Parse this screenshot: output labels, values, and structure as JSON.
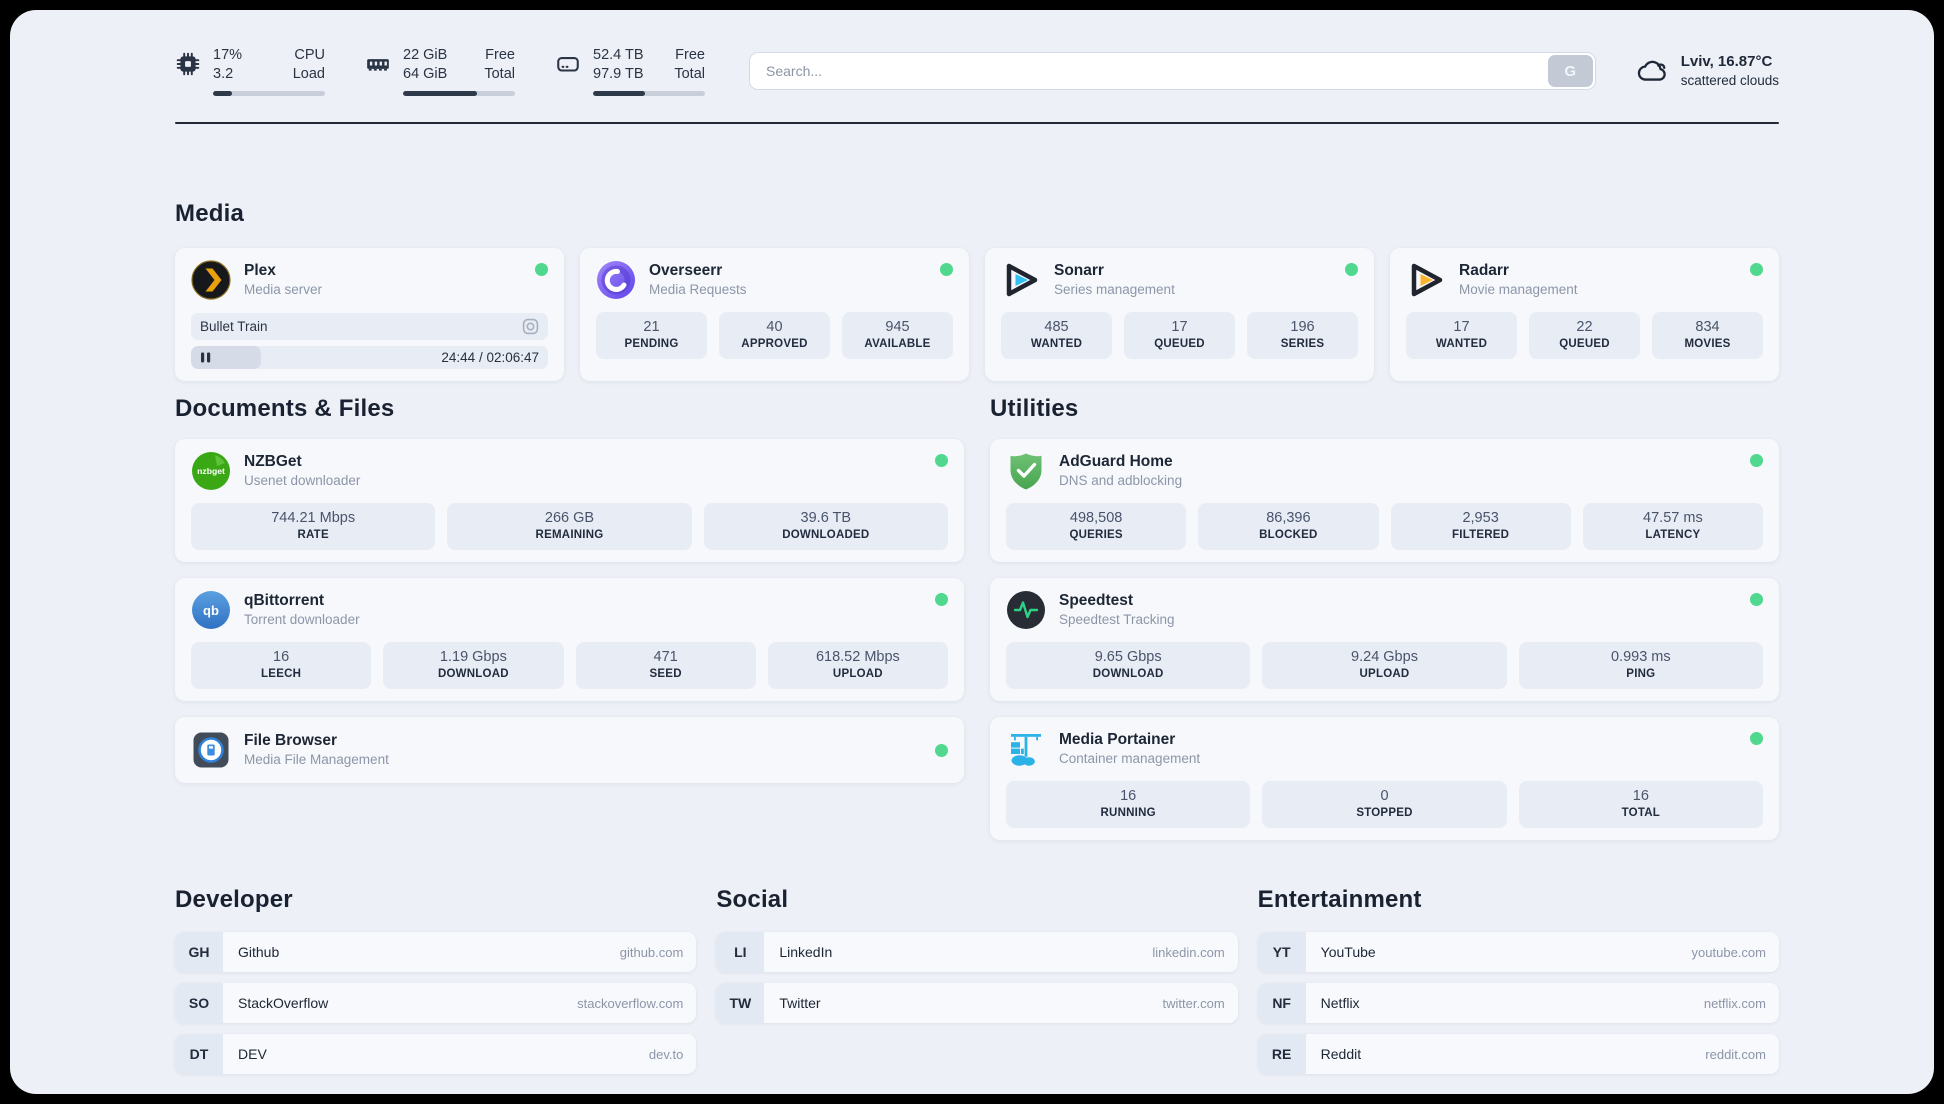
{
  "colors": {
    "status_online": "#4fd88e",
    "progress_fill": "#2e3949",
    "accent_text": "#1a2232"
  },
  "topbar": {
    "widgets": [
      {
        "id": "cpu",
        "values": [
          "17%",
          "3.2"
        ],
        "labels": [
          "CPU",
          "Load"
        ],
        "progress": 17
      },
      {
        "id": "memory",
        "values": [
          "22 GiB",
          "64 GiB"
        ],
        "labels": [
          "Free",
          "Total"
        ],
        "progress": 66
      },
      {
        "id": "disk",
        "values": [
          "52.4 TB",
          "97.9 TB"
        ],
        "labels": [
          "Free",
          "Total"
        ],
        "progress": 46
      }
    ],
    "search": {
      "placeholder": "Search...",
      "button_label": "G"
    },
    "weather": {
      "headline": "Lviv, 16.87°C",
      "condition": "scattered clouds"
    }
  },
  "media": {
    "heading": "Media",
    "plex": {
      "name": "Plex",
      "subtitle": "Media server",
      "now_playing": "Bullet Train",
      "elapsed_total": "24:44 / 02:06:47",
      "progress": 19.5
    },
    "overseerr": {
      "name": "Overseerr",
      "subtitle": "Media Requests",
      "stats": [
        {
          "value": "21",
          "label": "PENDING"
        },
        {
          "value": "40",
          "label": "APPROVED"
        },
        {
          "value": "945",
          "label": "AVAILABLE"
        }
      ]
    },
    "sonarr": {
      "name": "Sonarr",
      "subtitle": "Series management",
      "stats": [
        {
          "value": "485",
          "label": "WANTED"
        },
        {
          "value": "17",
          "label": "QUEUED"
        },
        {
          "value": "196",
          "label": "SERIES"
        }
      ]
    },
    "radarr": {
      "name": "Radarr",
      "subtitle": "Movie management",
      "stats": [
        {
          "value": "17",
          "label": "WANTED"
        },
        {
          "value": "22",
          "label": "QUEUED"
        },
        {
          "value": "834",
          "label": "MOVIES"
        }
      ]
    }
  },
  "documents": {
    "heading": "Documents & Files",
    "nzbget": {
      "name": "NZBGet",
      "subtitle": "Usenet downloader",
      "icon_text": "nzbget",
      "stats": [
        {
          "value": "744.21 Mbps",
          "label": "RATE"
        },
        {
          "value": "266 GB",
          "label": "REMAINING"
        },
        {
          "value": "39.6 TB",
          "label": "DOWNLOADED"
        }
      ]
    },
    "qbittorrent": {
      "name": "qBittorrent",
      "subtitle": "Torrent downloader",
      "icon_text": "qb",
      "stats": [
        {
          "value": "16",
          "label": "LEECH"
        },
        {
          "value": "1.19 Gbps",
          "label": "DOWNLOAD"
        },
        {
          "value": "471",
          "label": "SEED"
        },
        {
          "value": "618.52 Mbps",
          "label": "UPLOAD"
        }
      ]
    },
    "filebrowser": {
      "name": "File Browser",
      "subtitle": "Media File Management"
    }
  },
  "utilities": {
    "heading": "Utilities",
    "adguard": {
      "name": "AdGuard Home",
      "subtitle": "DNS and adblocking",
      "stats": [
        {
          "value": "498,508",
          "label": "QUERIES"
        },
        {
          "value": "86,396",
          "label": "BLOCKED"
        },
        {
          "value": "2,953",
          "label": "FILTERED"
        },
        {
          "value": "47.57 ms",
          "label": "LATENCY"
        }
      ]
    },
    "speedtest": {
      "name": "Speedtest",
      "subtitle": "Speedtest Tracking",
      "stats": [
        {
          "value": "9.65 Gbps",
          "label": "DOWNLOAD"
        },
        {
          "value": "9.24 Gbps",
          "label": "UPLOAD"
        },
        {
          "value": "0.993 ms",
          "label": "PING"
        }
      ]
    },
    "portainer": {
      "name": "Media Portainer",
      "subtitle": "Container management",
      "stats": [
        {
          "value": "16",
          "label": "RUNNING"
        },
        {
          "value": "0",
          "label": "STOPPED"
        },
        {
          "value": "16",
          "label": "TOTAL"
        }
      ]
    }
  },
  "bookmarks": {
    "developer": {
      "heading": "Developer",
      "items": [
        {
          "abbr": "GH",
          "name": "Github",
          "url": "github.com"
        },
        {
          "abbr": "SO",
          "name": "StackOverflow",
          "url": "stackoverflow.com"
        },
        {
          "abbr": "DT",
          "name": "DEV",
          "url": "dev.to"
        }
      ]
    },
    "social": {
      "heading": "Social",
      "items": [
        {
          "abbr": "LI",
          "name": "LinkedIn",
          "url": "linkedin.com"
        },
        {
          "abbr": "TW",
          "name": "Twitter",
          "url": "twitter.com"
        }
      ]
    },
    "entertainment": {
      "heading": "Entertainment",
      "items": [
        {
          "abbr": "YT",
          "name": "YouTube",
          "url": "youtube.com"
        },
        {
          "abbr": "NF",
          "name": "Netflix",
          "url": "netflix.com"
        },
        {
          "abbr": "RE",
          "name": "Reddit",
          "url": "reddit.com"
        }
      ]
    }
  }
}
